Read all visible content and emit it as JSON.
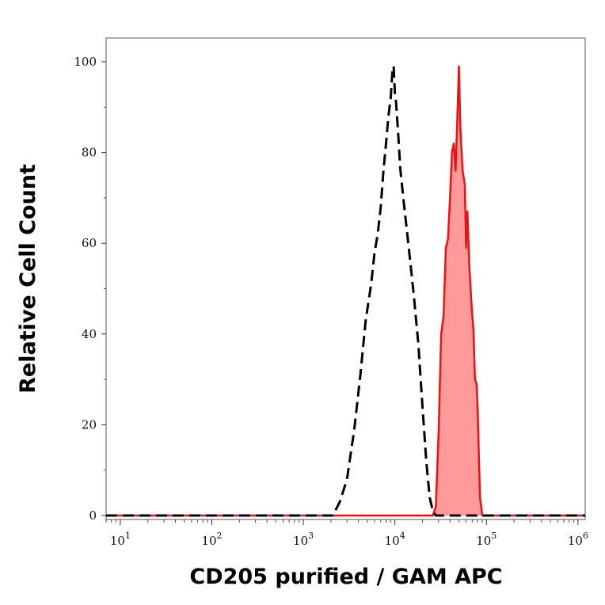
{
  "chart_data": {
    "type": "area",
    "xlabel": "CD205 purified / GAM APC",
    "ylabel": "Relative Cell Count",
    "x_scale": "log",
    "xlim": [
      7,
      1200000
    ],
    "ylim": [
      0,
      105
    ],
    "x_ticks": [
      {
        "value": 10,
        "base": "10",
        "exp": "1"
      },
      {
        "value": 100,
        "base": "10",
        "exp": "2"
      },
      {
        "value": 1000,
        "base": "10",
        "exp": "3"
      },
      {
        "value": 10000,
        "base": "10",
        "exp": "4"
      },
      {
        "value": 100000,
        "base": "10",
        "exp": "5"
      },
      {
        "value": 1000000,
        "base": "10",
        "exp": "6"
      }
    ],
    "y_ticks": [
      {
        "value": 0,
        "label": "0"
      },
      {
        "value": 20,
        "label": "20"
      },
      {
        "value": 40,
        "label": "40"
      },
      {
        "value": 60,
        "label": "60"
      },
      {
        "value": 80,
        "label": "80"
      },
      {
        "value": 100,
        "label": "100"
      }
    ],
    "grid": false,
    "series": [
      {
        "style": "dashed",
        "color": "#000000",
        "fill": null,
        "x": [
          7,
          2100,
          2500,
          3000,
          3600,
          4200,
          4800,
          5500,
          6000,
          6500,
          7000,
          7500,
          8000,
          8500,
          9000,
          9400,
          9700,
          10000,
          10300,
          10800,
          11500,
          12500,
          14000,
          16000,
          18000,
          20000,
          22000,
          24000,
          26000,
          28000,
          1200000
        ],
        "y": [
          0,
          0,
          3,
          8,
          19,
          31,
          43,
          51,
          58,
          62,
          68,
          76,
          82,
          88,
          92,
          98,
          99,
          93,
          91,
          85,
          76,
          69,
          60,
          49,
          38,
          24,
          12,
          4,
          1,
          0,
          0
        ]
      },
      {
        "style": "solid",
        "color": "#ee1111",
        "fill": "#ff9a9a",
        "x": [
          7,
          26000,
          28000,
          30000,
          32000,
          34000,
          36000,
          38000,
          40000,
          42000,
          44000,
          46000,
          48000,
          50000,
          52000,
          55000,
          58000,
          60000,
          62000,
          65000,
          68000,
          70000,
          72000,
          75000,
          78000,
          80000,
          85000,
          90000,
          1200000
        ],
        "y": [
          0,
          0,
          2,
          18,
          40,
          44,
          59,
          61,
          70,
          80,
          82,
          76,
          87,
          99,
          85,
          76,
          73,
          59,
          67,
          55,
          48,
          44,
          41,
          30,
          29,
          24,
          4,
          0,
          0
        ]
      }
    ]
  }
}
